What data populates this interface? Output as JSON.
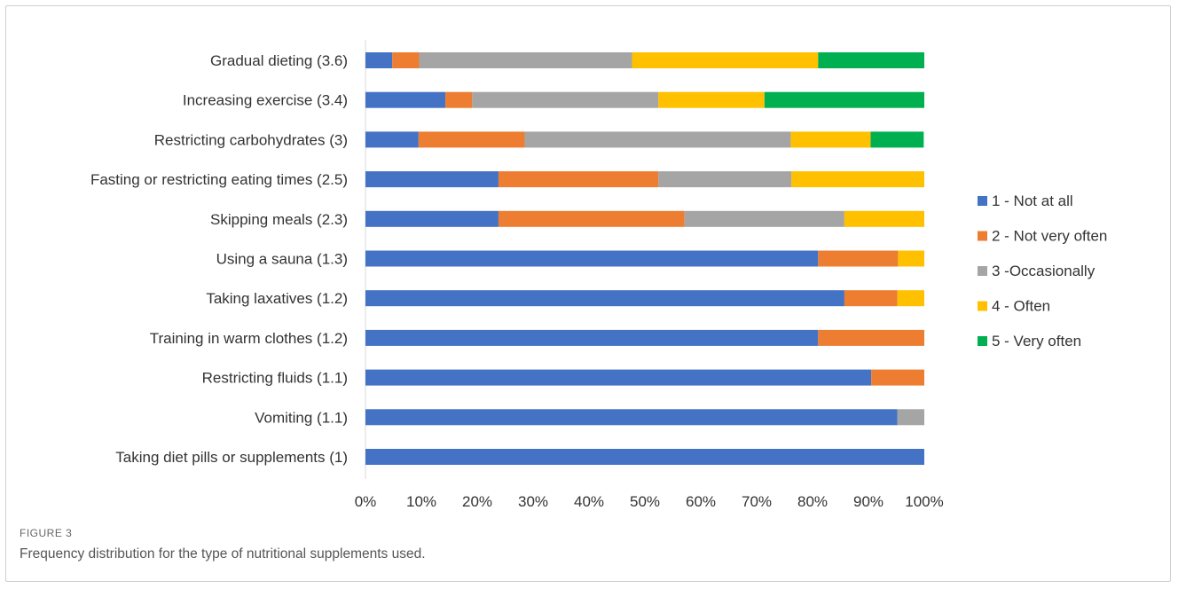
{
  "figure": {
    "label": "FIGURE 3",
    "caption": "Frequency distribution for the type of nutritional supplements used."
  },
  "chart_data": {
    "type": "bar",
    "orientation": "horizontal",
    "stacked": "percent",
    "title": "",
    "xlabel": "",
    "ylabel": "",
    "xlim": [
      0,
      100
    ],
    "x_ticks": [
      "0%",
      "10%",
      "20%",
      "30%",
      "40%",
      "50%",
      "60%",
      "70%",
      "80%",
      "90%",
      "100%"
    ],
    "grid": false,
    "legend_position": "right",
    "categories": [
      "Gradual dieting (3.6)",
      "Increasing exercise (3.4)",
      "Restricting carbohydrates (3)",
      "Fasting or restricting eating times (2.5)",
      "Skipping meals (2.3)",
      "Using a sauna (1.3)",
      "Taking laxatives (1.2)",
      "Training in warm clothes (1.2)",
      "Restricting fluids (1.1)",
      "Vomiting (1.1)",
      "Taking diet pills or supplements (1)"
    ],
    "series": [
      {
        "name": "1 - Not at all",
        "color": "#4472C4",
        "values": [
          4.8,
          14.3,
          9.5,
          23.8,
          23.8,
          81.0,
          85.7,
          81.0,
          90.5,
          95.2,
          100
        ]
      },
      {
        "name": "2 - Not very often",
        "color": "#ED7D31",
        "values": [
          4.8,
          4.8,
          19.0,
          28.6,
          33.3,
          14.3,
          9.5,
          19.0,
          9.5,
          0,
          0
        ]
      },
      {
        "name": "3 -Occasionally",
        "color": "#A5A5A5",
        "values": [
          38.1,
          33.3,
          47.6,
          23.8,
          28.6,
          0,
          0,
          0,
          0,
          4.8,
          0
        ]
      },
      {
        "name": "4 - Often",
        "color": "#FFC000",
        "values": [
          33.3,
          19.0,
          14.3,
          23.8,
          14.3,
          4.8,
          4.8,
          0,
          0,
          0,
          0
        ]
      },
      {
        "name": "5 - Very often",
        "color": "#00B050",
        "values": [
          19.0,
          28.6,
          9.5,
          0,
          0,
          0,
          0,
          0,
          0,
          0,
          0
        ]
      }
    ]
  }
}
